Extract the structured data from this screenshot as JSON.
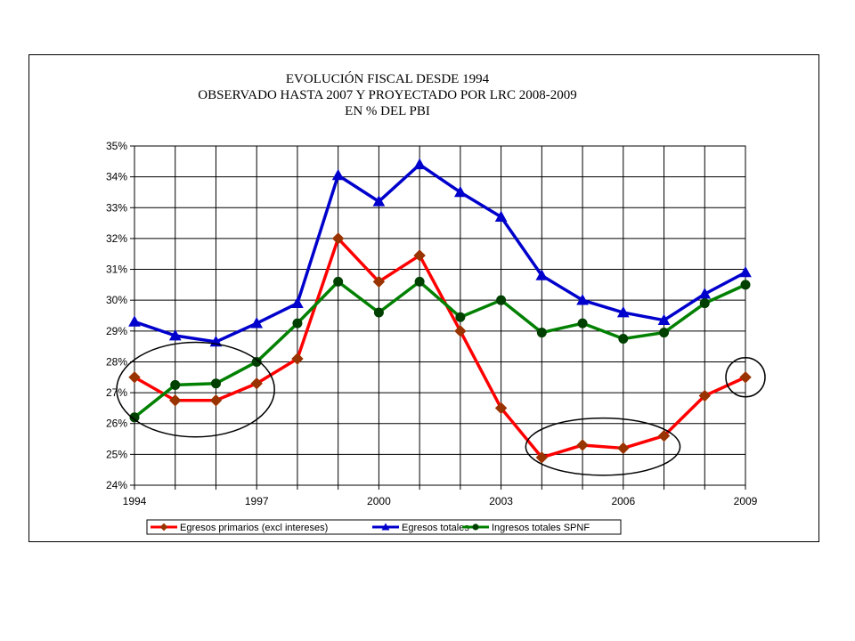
{
  "chart_data": {
    "type": "line",
    "title": [
      "EVOLUCIÓN FISCAL DESDE 1994",
      "OBSERVADO HASTA 2007 Y PROYECTADO POR LRC 2008-2009",
      "EN % DEL PBI"
    ],
    "x": [
      1994,
      1995,
      1996,
      1997,
      1998,
      1999,
      2000,
      2001,
      2002,
      2003,
      2004,
      2005,
      2006,
      2007,
      2008,
      2009
    ],
    "x_tick_labels": [
      "1994",
      "1997",
      "2000",
      "2003",
      "2006",
      "2009"
    ],
    "y_tick_labels": [
      "24%",
      "25%",
      "26%",
      "27%",
      "28%",
      "29%",
      "30%",
      "31%",
      "32%",
      "33%",
      "34%",
      "35%"
    ],
    "ylim": [
      24,
      35
    ],
    "y_unit": "%",
    "grid": true,
    "legend_position": "bottom",
    "series": [
      {
        "name": "Egresos primarios (excl intereses)",
        "color": "#ff0000",
        "marker_color": "#993300",
        "marker": "diamond",
        "values": [
          27.5,
          26.75,
          26.75,
          27.3,
          28.1,
          32.0,
          30.6,
          31.45,
          29.0,
          26.5,
          24.9,
          25.3,
          25.2,
          25.6,
          26.9,
          27.5
        ]
      },
      {
        "name": "Egresos totales",
        "color": "#0000cc",
        "marker_color": "#0000cc",
        "marker": "triangle",
        "values": [
          29.3,
          28.85,
          28.65,
          29.25,
          29.9,
          34.05,
          33.2,
          34.4,
          33.5,
          32.7,
          30.8,
          30.0,
          29.6,
          29.35,
          30.2,
          30.9
        ]
      },
      {
        "name": "Ingresos totales SPNF",
        "color": "#008000",
        "marker_color": "#004000",
        "marker": "circle",
        "values": [
          26.2,
          27.25,
          27.3,
          28.0,
          29.25,
          30.6,
          29.6,
          30.6,
          29.45,
          30.0,
          28.95,
          29.25,
          28.75,
          28.95,
          29.9,
          30.5
        ]
      }
    ],
    "annotations": [
      {
        "type": "ellipse",
        "around": "1994-1997"
      },
      {
        "type": "ellipse",
        "around": "2004-2007"
      },
      {
        "type": "circle",
        "around": "2009"
      }
    ]
  }
}
